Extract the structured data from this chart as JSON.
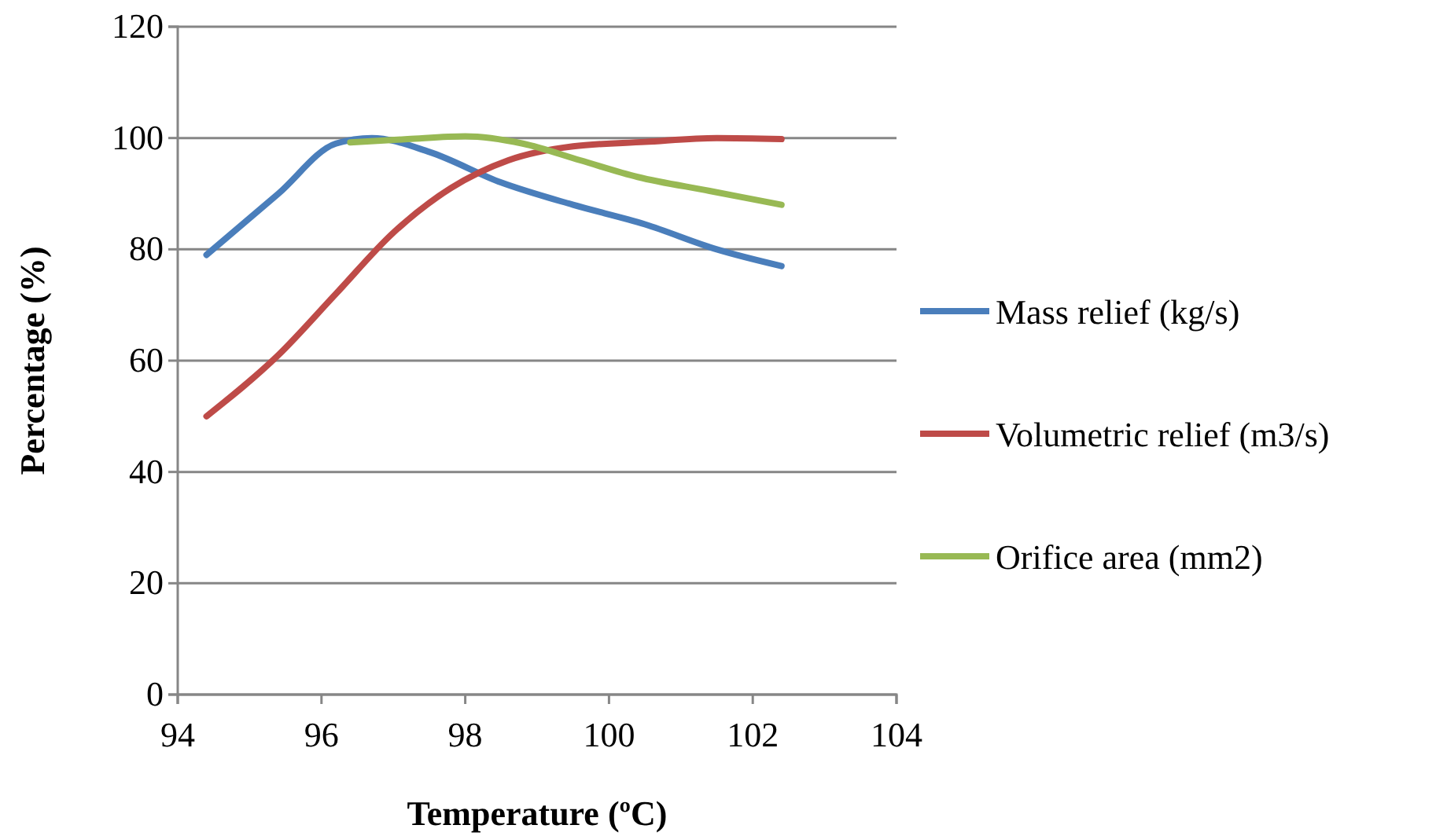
{
  "chart_data": {
    "type": "line",
    "xlabel": "Temperature (ºC)",
    "ylabel": "Percentage (%)",
    "xlim": [
      94,
      104
    ],
    "xticks": [
      94,
      96,
      98,
      100,
      102,
      104
    ],
    "ylim": [
      0,
      120
    ],
    "yticks": [
      0,
      20,
      40,
      60,
      80,
      100,
      120
    ],
    "grid": "y",
    "legend": "right",
    "marker": "none",
    "line_style": "solid",
    "series": [
      {
        "name": "Mass relief (kg/s)",
        "color": "#4a7ebb",
        "x": [
          94.4,
          95.4,
          96.2,
          96.7,
          97.5,
          98.5,
          99.5,
          100.5,
          101.5,
          102.4
        ],
        "values": [
          79,
          90,
          99,
          100,
          97.5,
          92,
          88,
          84.5,
          80,
          77
        ]
      },
      {
        "name": "Volumetric relief (m3/s)",
        "color": "#be4b48",
        "x": [
          94.4,
          95.4,
          96.2,
          97.0,
          97.8,
          98.6,
          99.5,
          100.5,
          101.5,
          102.4
        ],
        "values": [
          50,
          61,
          72,
          83,
          91,
          96,
          98.5,
          99.3,
          100,
          99.8
        ]
      },
      {
        "name": "Orifice area (mm2)",
        "color": "#98b954",
        "x": [
          96.4,
          97.2,
          98.0,
          98.8,
          99.6,
          100.4,
          101.4,
          102.4
        ],
        "values": [
          99.2,
          99.8,
          100.3,
          99,
          96,
          93,
          90.5,
          88
        ]
      }
    ]
  }
}
